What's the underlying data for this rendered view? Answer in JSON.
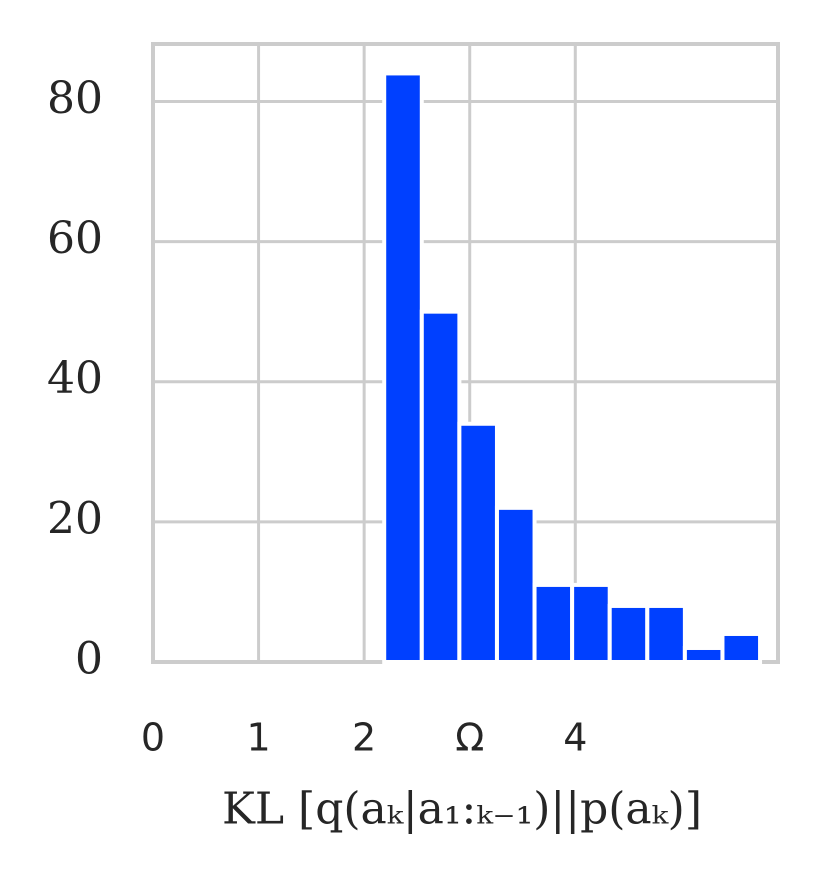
{
  "chart_data": {
    "type": "histogram",
    "x_label": "KL [q(aₖ|a₁:ₖ₋₁)||p(aₖ)]",
    "bins": [
      2.19,
      2.546,
      2.902,
      3.258,
      3.614,
      3.97,
      4.326,
      4.682,
      5.038,
      5.394,
      5.75
    ],
    "values": [
      84,
      50,
      34,
      22,
      11,
      11,
      8,
      8,
      2,
      4
    ],
    "color": "#0040ff",
    "xlim": [
      0,
      5.92
    ],
    "ylim": [
      0,
      88.2
    ],
    "xticks": [
      0,
      1,
      2,
      {
        "value": 3,
        "label": "Ω"
      },
      4
    ],
    "yticks": [
      0,
      20,
      40,
      60,
      80
    ],
    "grid": true
  }
}
